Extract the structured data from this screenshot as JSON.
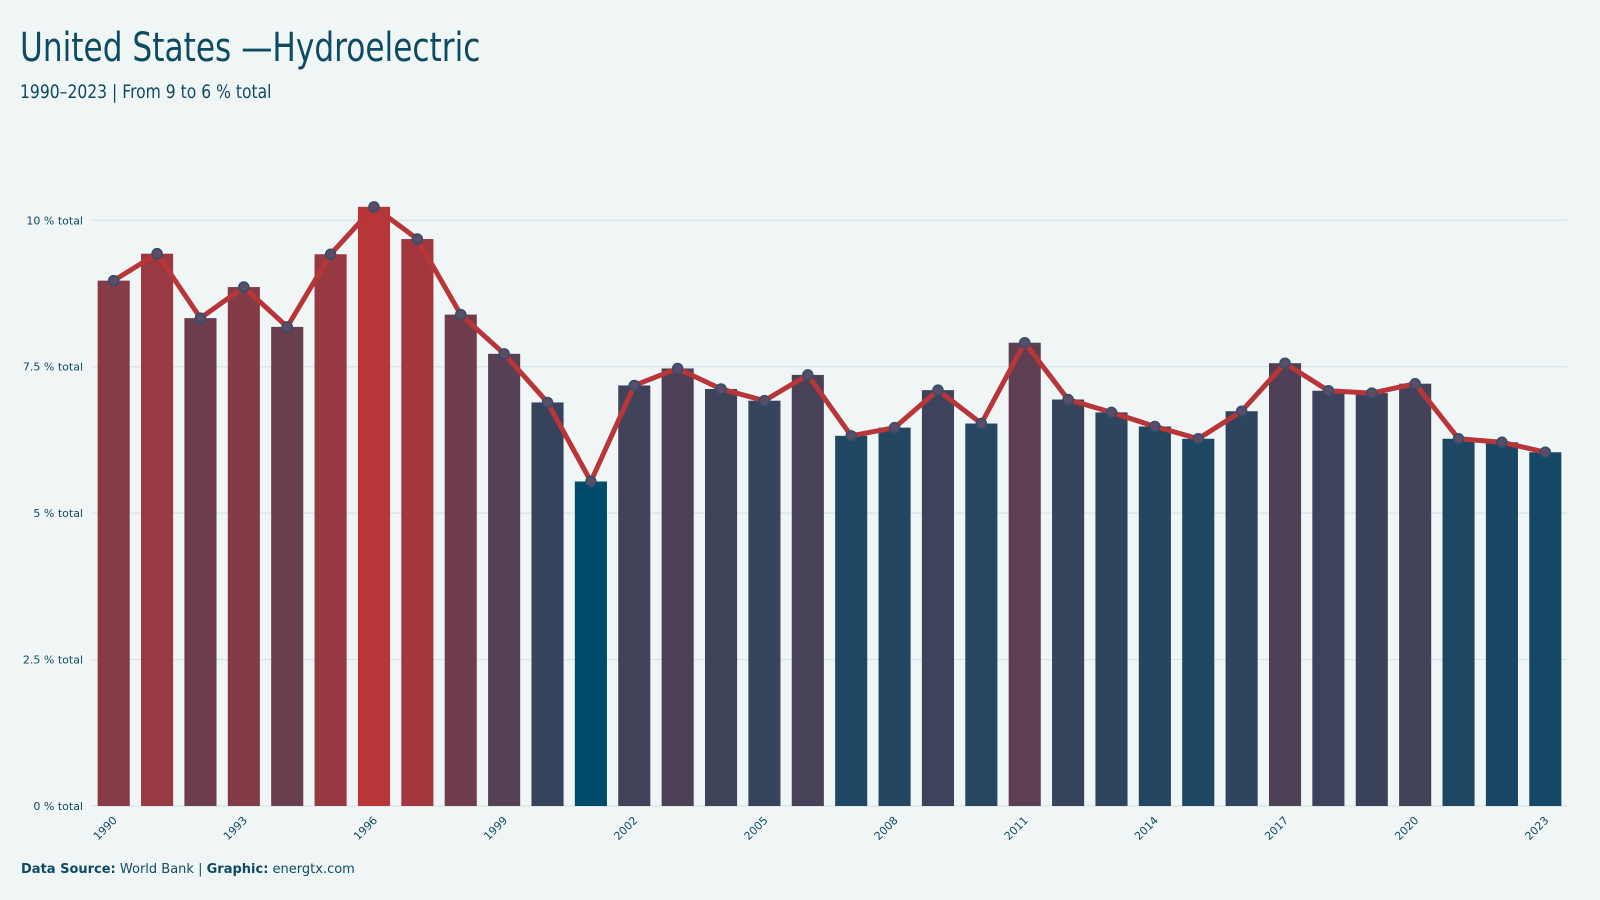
{
  "header": {
    "title": "United States —Hydroelectric",
    "subtitle": "1990–2023 | From 9 to 6 % total"
  },
  "footer": {
    "source_label": "Data Source:",
    "source_value": "World Bank",
    "separator": "|",
    "graphic_label": "Graphic:",
    "graphic_value": "energtx.com"
  },
  "colors": {
    "background": "#f0f6f6",
    "text": "#0f4a63",
    "high": "#b83538",
    "low": "#004a6b",
    "line": "#b83538",
    "grid": "#d8e4e6"
  },
  "chart_data": {
    "type": "bar",
    "x": [
      1990,
      1991,
      1992,
      1993,
      1994,
      1995,
      1996,
      1997,
      1998,
      1999,
      2000,
      2001,
      2002,
      2003,
      2004,
      2005,
      2006,
      2007,
      2008,
      2009,
      2010,
      2011,
      2012,
      2013,
      2014,
      2015,
      2016,
      2017,
      2018,
      2019,
      2020,
      2021,
      2022,
      2023
    ],
    "values": [
      8.97,
      9.43,
      8.33,
      8.86,
      8.18,
      9.42,
      10.23,
      9.68,
      8.39,
      7.72,
      6.89,
      5.54,
      7.18,
      7.47,
      7.12,
      6.92,
      7.36,
      6.32,
      6.46,
      7.1,
      6.53,
      7.91,
      6.94,
      6.72,
      6.48,
      6.27,
      6.74,
      7.56,
      7.09,
      7.05,
      7.21,
      6.27,
      6.21,
      6.04
    ],
    "series": [
      {
        "name": "",
        "type": "bar"
      },
      {
        "name": "",
        "type": "line"
      }
    ],
    "xtick_labels": [
      "1990",
      "1993",
      "1996",
      "1999",
      "2002",
      "2005",
      "2008",
      "2011",
      "2014",
      "2017",
      "2020",
      "2023"
    ],
    "ytick_labels": [
      "0 % total",
      "2.5 % total",
      "5 % total",
      "7.5 % total",
      "10 % total"
    ],
    "yticks": [
      0,
      2.5,
      5,
      7.5,
      10
    ],
    "ylim": [
      0,
      11.2
    ],
    "grid": true,
    "legend": "none",
    "title": "United States —Hydroelectric",
    "subtitle": "1990–2023 | From 9 to 6 % total",
    "xlabel": "",
    "ylabel": ""
  }
}
